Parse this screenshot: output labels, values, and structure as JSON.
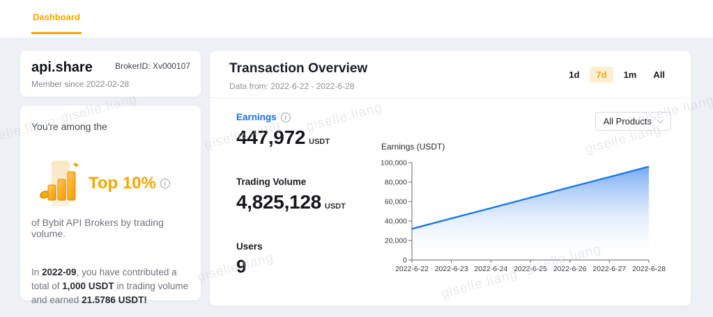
{
  "nav": {
    "tabs": [
      {
        "label": "Dashboard",
        "active": true
      }
    ]
  },
  "profile_card": {
    "name": "api.share",
    "broker_id": "BrokerID: Xv000107",
    "member_since": "Member since 2022-02-28"
  },
  "rank_card": {
    "intro": "You're among the",
    "rank": "Top 10%",
    "badge_icon": "bar-chart-with-coin-icon",
    "caption": "of Bybit API Brokers by trading volume.",
    "summary": {
      "t1": "In ",
      "b1": "2022-09",
      "t2": ", you have contributed a total of ",
      "b2": "1,000 USDT",
      "t3": " in trading volume and earned ",
      "b3": "21.5786 USDT!"
    }
  },
  "overview": {
    "title": "Transaction Overview",
    "subtitle": "Data from: 2022-6-22 - 2022-6-28",
    "ranges": [
      "1d",
      "7d",
      "1m",
      "All"
    ],
    "active_range": "7d",
    "stats": [
      {
        "label": "Earnings",
        "value": "447,972",
        "unit": "USDT",
        "has_info": true
      },
      {
        "label": "Trading Volume",
        "value": "4,825,128",
        "unit": "USDT"
      },
      {
        "label": "Users",
        "value": "9",
        "unit": ""
      }
    ],
    "products_filter": {
      "selected": "All Products"
    }
  },
  "watermark": {
    "text": "giselle.liang"
  },
  "colors": {
    "accent_orange": "#f7a600",
    "active_range_bg": "#fbeed3",
    "earnings_blue": "#1b6ef3",
    "chart_line": "#1677f2",
    "chart_fill_top": "#4e92ef",
    "page_bg": "#edf0f5"
  },
  "chart_data": {
    "type": "area",
    "title": "Earnings (USDT)",
    "categories": [
      "2022-6-22",
      "2022-6-23",
      "2022-6-24",
      "2022-6-25",
      "2022-6-26",
      "2022-6-27",
      "2022-6-28"
    ],
    "values": [
      32000,
      42700,
      53300,
      64000,
      74700,
      85300,
      96000
    ],
    "ylim": [
      0,
      100000
    ],
    "yticks": [
      0,
      20000,
      40000,
      60000,
      80000,
      100000
    ],
    "ytick_labels": [
      "0",
      "20,000",
      "40,000",
      "60,000",
      "80,000",
      "100,000"
    ],
    "xlabel": "",
    "ylabel": "",
    "grid": false,
    "legend": false
  }
}
